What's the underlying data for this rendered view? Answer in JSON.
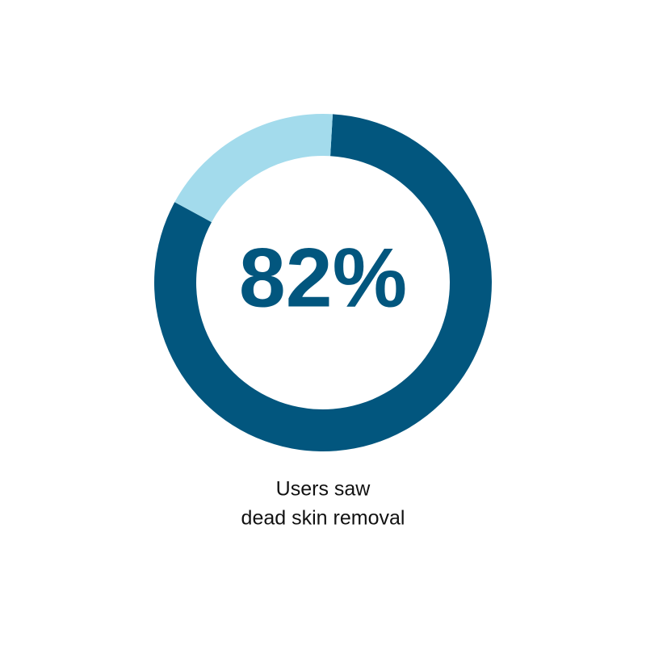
{
  "chart_data": {
    "type": "donut",
    "values": [
      82,
      18
    ],
    "value_labels": [
      "82%",
      null
    ],
    "colors": [
      "#02567e",
      "#a3dbec"
    ],
    "caption": [
      "Users saw",
      "dead skin removal"
    ]
  }
}
